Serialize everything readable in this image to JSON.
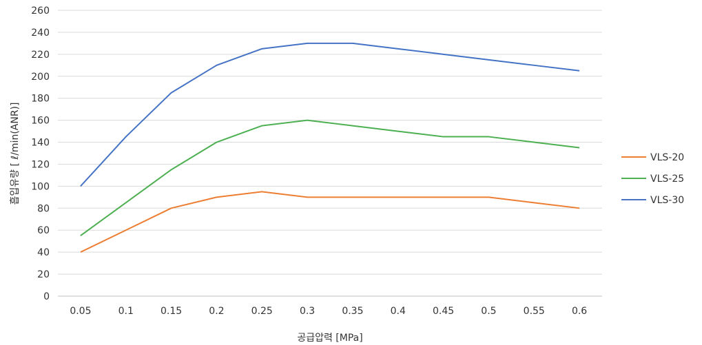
{
  "chart_data": {
    "type": "line",
    "title": "",
    "xlabel": "공급압력 [MPa]",
    "ylabel": "흡입유량 [ ℓ/min(ANR)]",
    "categories": [
      "0.05",
      "0.1",
      "0.15",
      "0.2",
      "0.25",
      "0.3",
      "0.35",
      "0.4",
      "0.45",
      "0.5",
      "0.55",
      "0.6"
    ],
    "ylim": [
      0,
      260
    ],
    "yticks": [
      "0",
      "20",
      "40",
      "60",
      "80",
      "100",
      "120",
      "140",
      "160",
      "180",
      "200",
      "220",
      "240",
      "260"
    ],
    "grid": true,
    "legend_position": "right",
    "series": [
      {
        "name": "VLS-20",
        "color": "#ED7D31",
        "values": [
          40,
          60,
          80,
          90,
          95,
          90,
          90,
          90,
          90,
          90,
          85,
          80
        ]
      },
      {
        "name": "VLS-25",
        "color": "#4CAF50",
        "values": [
          55,
          85,
          115,
          140,
          155,
          160,
          155,
          150,
          145,
          145,
          140,
          135
        ]
      },
      {
        "name": "VLS-30",
        "color": "#4472C4",
        "values": [
          100,
          145,
          185,
          210,
          225,
          230,
          230,
          225,
          220,
          215,
          210,
          205
        ]
      }
    ]
  }
}
